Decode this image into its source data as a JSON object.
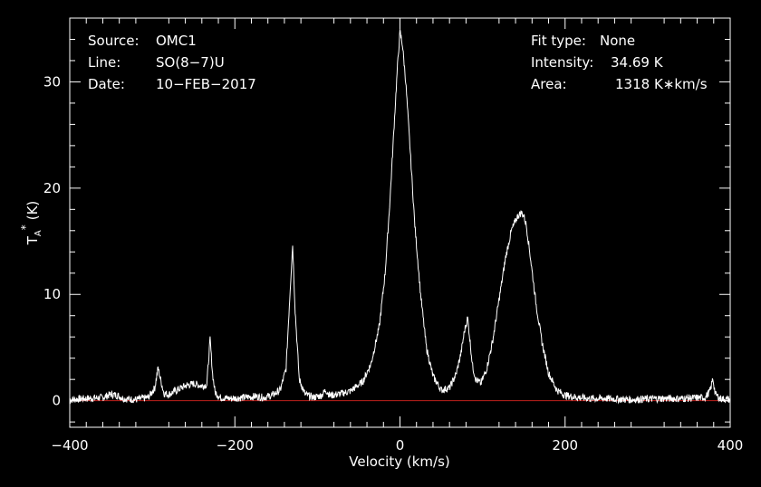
{
  "info": {
    "source_label": "Source:",
    "source_value": "OMC1",
    "line_label": "Line:",
    "line_value": "SO(8−7)U",
    "date_label": "Date:",
    "date_value": "10−FEB−2017",
    "fit_label": "Fit type:",
    "fit_value": "None",
    "intensity_label": "Intensity:",
    "intensity_value": "34.69 K",
    "area_label": "Area:",
    "area_value": "1318 K∗km/s"
  },
  "colors": {
    "background": "#000000",
    "foreground": "#ffffff",
    "baseline": "#c0201c"
  },
  "chart_data": {
    "type": "line",
    "xlabel": "Velocity (km/s)",
    "ylabel_main": "T",
    "ylabel_sub": "A",
    "ylabel_sup": "*",
    "ylabel_unit": "(K)",
    "xlim": [
      -400,
      400
    ],
    "ylim": [
      -2.5,
      36
    ],
    "x_ticks": [
      -400,
      -200,
      0,
      200,
      400
    ],
    "x_tick_labels": [
      "−400",
      "−200",
      "0",
      "200",
      "400"
    ],
    "y_ticks": [
      0,
      10,
      20,
      30
    ],
    "y_tick_labels": [
      "0",
      "10",
      "20",
      "30"
    ],
    "baseline_y": 0,
    "series": [
      {
        "style": "line",
        "x": [
          -400,
          -380,
          -360,
          -350,
          -342,
          -335,
          -320,
          -305,
          -297,
          -293,
          -290,
          -286,
          -280,
          -270,
          -260,
          -250,
          -240,
          -234,
          -230,
          -227,
          -224,
          -218,
          -205,
          -190,
          -175,
          -165,
          -155,
          -145,
          -138,
          -133,
          -130,
          -127,
          -122,
          -115,
          -105,
          -95,
          -90,
          -85,
          -75,
          -60,
          -45,
          -35,
          -25,
          -18,
          -12,
          -7,
          -3,
          0,
          3,
          7,
          12,
          18,
          25,
          32,
          40,
          50,
          60,
          68,
          74,
          78,
          82,
          85,
          88,
          92,
          98,
          105,
          112,
          120,
          128,
          135,
          142,
          147,
          150,
          153,
          158,
          165,
          172,
          180,
          190,
          200,
          215,
          230,
          250,
          280,
          310,
          340,
          370,
          376,
          379,
          382,
          388,
          400
        ],
        "y": [
          0.1,
          0.2,
          0.3,
          0.6,
          0.5,
          0.2,
          0.1,
          0.3,
          1.2,
          3.1,
          2.0,
          0.7,
          0.6,
          1.0,
          1.4,
          1.6,
          1.4,
          1.5,
          5.8,
          2.5,
          0.8,
          0.3,
          0.2,
          0.3,
          0.4,
          0.3,
          0.5,
          1.0,
          3.0,
          10.5,
          14.7,
          8.5,
          2.0,
          0.6,
          0.3,
          0.5,
          1.0,
          0.5,
          0.6,
          0.9,
          1.8,
          3.5,
          7.0,
          12.0,
          19.0,
          26.0,
          31.5,
          34.7,
          33.5,
          30.0,
          24.0,
          16.5,
          10.0,
          5.0,
          2.3,
          1.0,
          1.2,
          2.5,
          4.5,
          6.5,
          7.8,
          5.5,
          3.2,
          2.0,
          1.6,
          3.0,
          5.5,
          9.5,
          13.5,
          16.0,
          17.3,
          17.7,
          17.4,
          16.5,
          13.5,
          9.0,
          5.5,
          2.6,
          1.0,
          0.5,
          0.3,
          0.2,
          0.2,
          0.1,
          0.2,
          0.2,
          0.3,
          1.0,
          2.1,
          0.6,
          0.2,
          0.1
        ]
      }
    ]
  }
}
